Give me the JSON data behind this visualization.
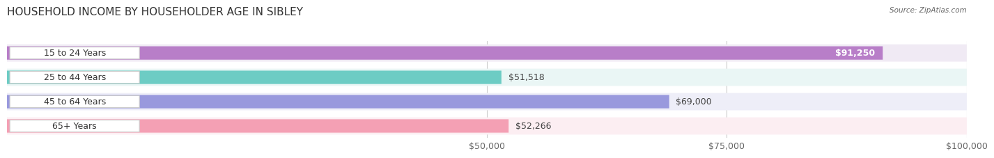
{
  "title": "HOUSEHOLD INCOME BY HOUSEHOLDER AGE IN SIBLEY",
  "source": "Source: ZipAtlas.com",
  "categories": [
    "15 to 24 Years",
    "25 to 44 Years",
    "45 to 64 Years",
    "65+ Years"
  ],
  "values": [
    91250,
    51518,
    69000,
    52266
  ],
  "bar_colors": [
    "#b87ec8",
    "#6dccc4",
    "#9999dd",
    "#f4a0b4"
  ],
  "row_bg_colors": [
    "#f0eaf4",
    "#eaf6f5",
    "#eeeef8",
    "#fceef2"
  ],
  "xlim": [
    0,
    100000
  ],
  "xticks": [
    50000,
    75000,
    100000
  ],
  "xtick_labels": [
    "$50,000",
    "$75,000",
    "$100,000"
  ],
  "title_fontsize": 11,
  "label_fontsize": 9,
  "value_fontsize": 9,
  "bar_height": 0.55,
  "figsize": [
    14.06,
    2.33
  ],
  "dpi": 100
}
